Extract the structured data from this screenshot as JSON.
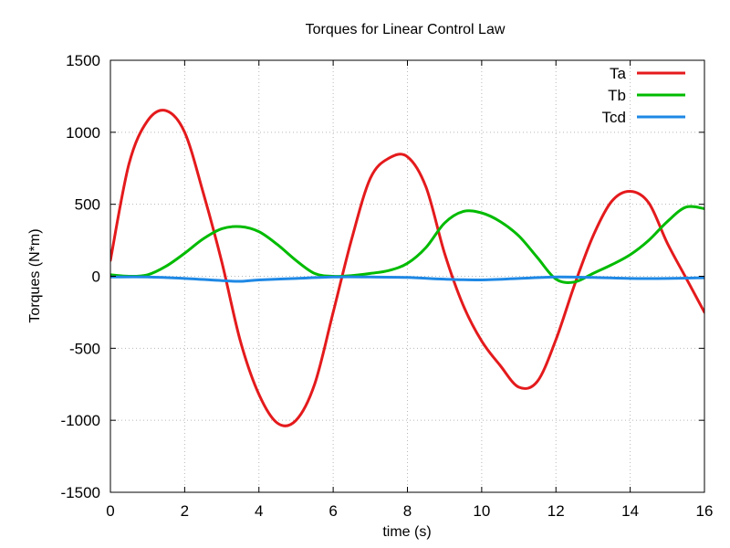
{
  "chart_data": {
    "type": "line",
    "title": "Torques for Linear Control Law",
    "xlabel": "time (s)",
    "ylabel": "Torques (N*m)",
    "xlim": [
      0,
      16
    ],
    "ylim": [
      -1500,
      1500
    ],
    "xticks": [
      0,
      2,
      4,
      6,
      8,
      10,
      12,
      14,
      16
    ],
    "yticks": [
      -1500,
      -1000,
      -500,
      0,
      500,
      1000,
      1500
    ],
    "grid": true,
    "legend_position": "top-right",
    "series": [
      {
        "name": "Ta",
        "color": "#e41a1c",
        "x": [
          0,
          0.5,
          1,
          1.5,
          2,
          2.5,
          3,
          3.5,
          4,
          4.5,
          5,
          5.5,
          6,
          6.5,
          7,
          7.5,
          8,
          8.5,
          9,
          9.5,
          10,
          10.5,
          11,
          11.5,
          12,
          12.5,
          13,
          13.5,
          14,
          14.5,
          15,
          15.5,
          16
        ],
        "y": [
          110,
          780,
          1080,
          1150,
          1000,
          580,
          100,
          -450,
          -820,
          -1020,
          -1000,
          -750,
          -250,
          260,
          680,
          820,
          830,
          620,
          160,
          -200,
          -450,
          -620,
          -770,
          -730,
          -440,
          -60,
          280,
          520,
          590,
          510,
          230,
          -10,
          -250
        ]
      },
      {
        "name": "Tb",
        "color": "#00bb00",
        "x": [
          0,
          0.5,
          1,
          1.5,
          2,
          2.5,
          3,
          3.5,
          4,
          4.5,
          5,
          5.5,
          6,
          6.5,
          7,
          7.5,
          8,
          8.5,
          9,
          9.5,
          10,
          10.5,
          11,
          11.5,
          12,
          12.5,
          13,
          13.5,
          14,
          14.5,
          15,
          15.5,
          16
        ],
        "y": [
          10,
          0,
          10,
          70,
          160,
          260,
          330,
          345,
          310,
          220,
          110,
          20,
          0,
          5,
          20,
          40,
          90,
          200,
          370,
          450,
          440,
          380,
          280,
          130,
          -20,
          -40,
          20,
          80,
          150,
          250,
          380,
          480,
          470
        ]
      },
      {
        "name": "Tcd",
        "color": "#1e88e5",
        "x": [
          0,
          1,
          2,
          3,
          3.5,
          4,
          5,
          6,
          7,
          8,
          9,
          10,
          11,
          12,
          13,
          14,
          15,
          16
        ],
        "y": [
          -5,
          -5,
          -15,
          -30,
          -35,
          -25,
          -15,
          -5,
          -5,
          -8,
          -20,
          -25,
          -15,
          -5,
          -8,
          -15,
          -15,
          -10
        ]
      }
    ]
  }
}
